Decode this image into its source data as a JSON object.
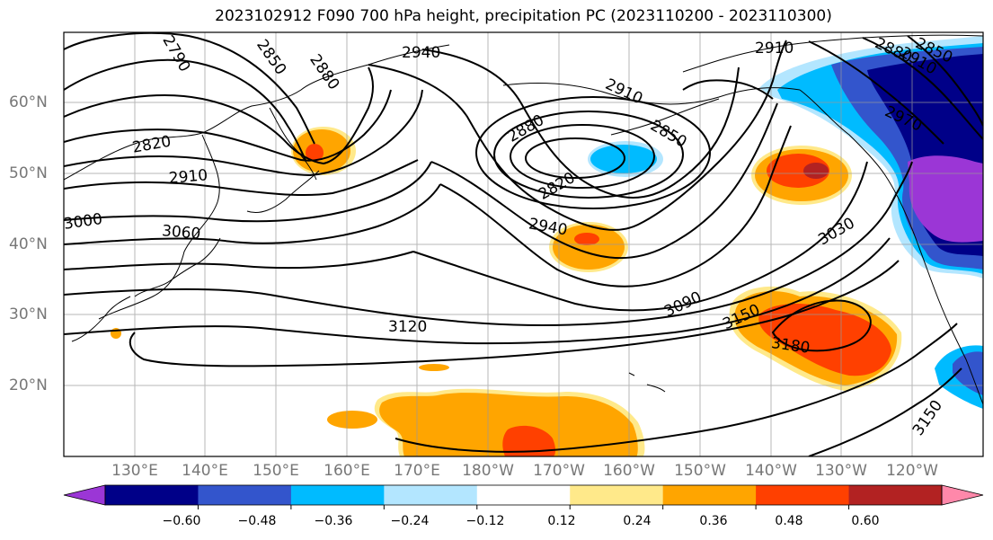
{
  "title": "2023102912 F090 700 hPa height, precipitation PC (2023110200 - 2023110300)",
  "lat_labels": [
    "60°N",
    "50°N",
    "40°N",
    "30°N",
    "20°N"
  ],
  "lon_labels": [
    "130°E",
    "140°E",
    "150°E",
    "160°E",
    "170°E",
    "180°W",
    "170°W",
    "160°W",
    "150°W",
    "140°W",
    "130°W",
    "120°W"
  ],
  "colorbar": {
    "ticks": [
      "−0.60",
      "−0.48",
      "−0.36",
      "−0.24",
      "−0.12",
      "0.12",
      "0.24",
      "0.36",
      "0.48",
      "0.60"
    ],
    "colors": [
      "#9b36d6",
      "#000088",
      "#3355cc",
      "#00bbff",
      "#b3e6ff",
      "#ffffff",
      "#ffe98a",
      "#ffa500",
      "#ff4000",
      "#b22222",
      "#ff88aa"
    ]
  },
  "contour_labels": [
    "2790",
    "2850",
    "2880",
    "2940",
    "2910",
    "2880",
    "2850",
    "2820",
    "2910",
    "2820",
    "2850",
    "2880",
    "2910",
    "2970",
    "2910",
    "3000",
    "3060",
    "2940",
    "3030",
    "3090",
    "3150",
    "3120",
    "3180",
    "3150"
  ]
}
